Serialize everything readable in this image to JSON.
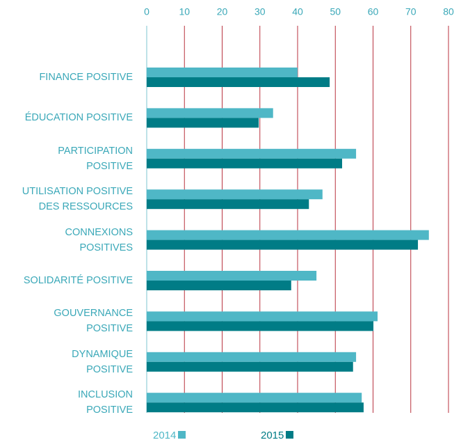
{
  "chart_data": {
    "type": "bar",
    "orientation": "horizontal",
    "categories": [
      "FINANCE POSITIVE",
      "ÉDUCATION POSITIVE",
      "PARTICIPATION\nPOSITIVE",
      "UTILISATION POSITIVE\nDES RESSOURCES",
      "CONNEXIONS\nPOSITIVES",
      "SOLIDARITÉ POSITIVE",
      "GOUVERNANCE\nPOSITIVE",
      "DYNAMIQUE\nPOSITIVE",
      "INCLUSION\nPOSITIVE"
    ],
    "series": [
      {
        "name": "2014",
        "color": "#4fb7c6",
        "values": [
          40,
          33.5,
          55.5,
          46.6,
          74.8,
          45,
          61.2,
          55.5,
          57
        ]
      },
      {
        "name": "2015",
        "color": "#007c86",
        "values": [
          48.5,
          29.7,
          51.8,
          43,
          71.9,
          38.3,
          60.1,
          54.7,
          57.5
        ]
      }
    ],
    "xlim": [
      0,
      80
    ],
    "xticks": [
      0,
      10,
      20,
      30,
      40,
      50,
      60,
      70,
      80
    ],
    "grid": true,
    "grid_color": "#b8323f"
  }
}
